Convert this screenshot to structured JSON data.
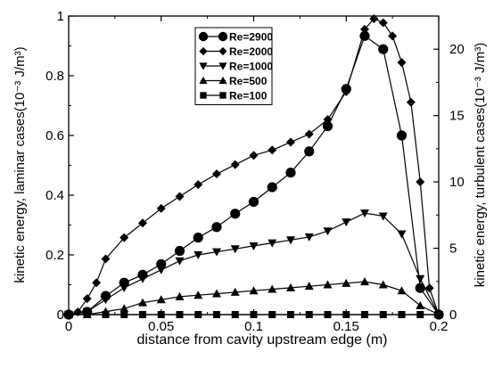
{
  "chart_data": {
    "type": "line",
    "title": "",
    "xlabel": "distance from cavity upstream edge (m)",
    "ylabel_left": "kinetic energy, laminar cases(10⁻³ J/m³)",
    "ylabel_right": "kinetic energy, turbulent cases(10⁻³ J/m³)",
    "xlim": [
      0,
      0.2
    ],
    "ylim_left": [
      0,
      1
    ],
    "ylim_right": [
      0,
      22.5
    ],
    "x_ticks": [
      "0",
      "0.05",
      "0.1",
      "0.15",
      "0.2"
    ],
    "y_ticks_left": [
      "0",
      "0.2",
      "0.4",
      "0.6",
      "0.8",
      "1"
    ],
    "y_ticks_right": [
      "0",
      "5",
      "10",
      "15",
      "20"
    ],
    "grid": false,
    "legend_position": "top-center",
    "series": [
      {
        "name": "Re=2900",
        "marker": "circle",
        "axis": "right",
        "x": [
          0,
          0.01,
          0.02,
          0.03,
          0.04,
          0.05,
          0.06,
          0.07,
          0.08,
          0.09,
          0.1,
          0.11,
          0.12,
          0.13,
          0.14,
          0.15,
          0.16,
          0.17,
          0.18,
          0.19,
          0.2
        ],
        "values": [
          0,
          0.2,
          1.4,
          2.4,
          3.0,
          3.8,
          4.8,
          5.8,
          6.6,
          7.6,
          8.5,
          9.6,
          10.7,
          12.3,
          14.2,
          17.0,
          21.0,
          20.0,
          13.5,
          2.0,
          0
        ]
      },
      {
        "name": "Re=2000",
        "marker": "diamond",
        "axis": "right",
        "x": [
          0,
          0.005,
          0.01,
          0.015,
          0.02,
          0.03,
          0.04,
          0.05,
          0.06,
          0.07,
          0.08,
          0.09,
          0.1,
          0.11,
          0.12,
          0.13,
          0.14,
          0.15,
          0.16,
          0.165,
          0.17,
          0.175,
          0.18,
          0.185,
          0.19,
          0.195,
          0.2
        ],
        "values": [
          0,
          0.2,
          1.2,
          2.4,
          4.2,
          5.8,
          6.9,
          8.0,
          8.9,
          9.8,
          10.6,
          11.3,
          12.0,
          12.4,
          13.0,
          13.6,
          14.7,
          16.8,
          21.5,
          22.3,
          22.0,
          21.0,
          19.0,
          16.0,
          10.0,
          2.0,
          0
        ]
      },
      {
        "name": "Re=1000",
        "marker": "triangle-down",
        "axis": "left",
        "x": [
          0,
          0.01,
          0.02,
          0.03,
          0.04,
          0.05,
          0.06,
          0.07,
          0.08,
          0.09,
          0.1,
          0.11,
          0.12,
          0.13,
          0.14,
          0.15,
          0.16,
          0.17,
          0.18,
          0.19,
          0.2
        ],
        "values": [
          0,
          0.01,
          0.05,
          0.09,
          0.12,
          0.15,
          0.18,
          0.2,
          0.21,
          0.22,
          0.23,
          0.24,
          0.25,
          0.26,
          0.28,
          0.31,
          0.34,
          0.33,
          0.27,
          0.12,
          0
        ]
      },
      {
        "name": "Re=500",
        "marker": "triangle-up",
        "axis": "left",
        "x": [
          0,
          0.01,
          0.02,
          0.03,
          0.04,
          0.05,
          0.06,
          0.07,
          0.08,
          0.09,
          0.1,
          0.11,
          0.12,
          0.13,
          0.14,
          0.15,
          0.16,
          0.17,
          0.18,
          0.19,
          0.2
        ],
        "values": [
          0,
          0.0,
          0.01,
          0.02,
          0.04,
          0.05,
          0.06,
          0.065,
          0.07,
          0.075,
          0.08,
          0.085,
          0.09,
          0.095,
          0.1,
          0.105,
          0.11,
          0.1,
          0.08,
          0.03,
          0
        ]
      },
      {
        "name": "Re=100",
        "marker": "square",
        "axis": "left",
        "x": [
          0,
          0.01,
          0.02,
          0.03,
          0.04,
          0.05,
          0.06,
          0.07,
          0.08,
          0.09,
          0.1,
          0.11,
          0.12,
          0.13,
          0.14,
          0.15,
          0.16,
          0.17,
          0.18,
          0.19,
          0.2
        ],
        "values": [
          0,
          0,
          0,
          0,
          0,
          0,
          0,
          0,
          0,
          0,
          0,
          0,
          0,
          0,
          0,
          0,
          0,
          0,
          0,
          0,
          0
        ]
      }
    ]
  }
}
